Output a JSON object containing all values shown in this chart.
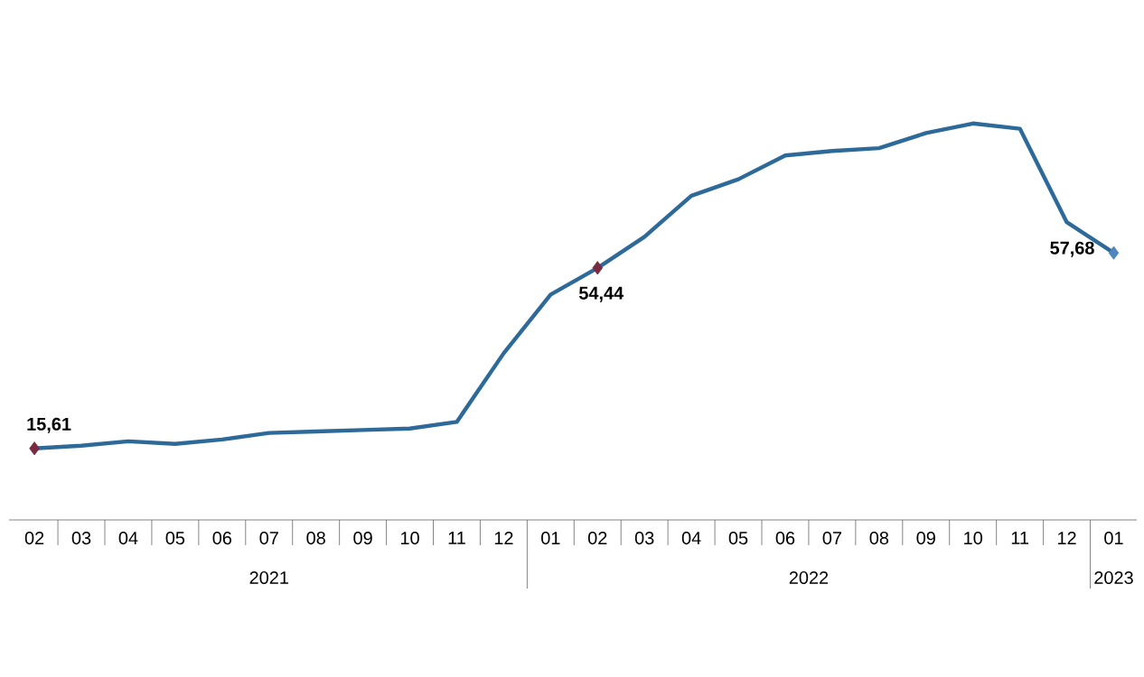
{
  "chart_data": {
    "type": "line",
    "x": [
      "2021-02",
      "2021-03",
      "2021-04",
      "2021-05",
      "2021-06",
      "2021-07",
      "2021-08",
      "2021-09",
      "2021-10",
      "2021-11",
      "2021-12",
      "2022-01",
      "2022-02",
      "2022-03",
      "2022-04",
      "2022-05",
      "2022-06",
      "2022-07",
      "2022-08",
      "2022-09",
      "2022-10",
      "2022-11",
      "2022-12",
      "2023-01"
    ],
    "xticks": [
      {
        "value": "2021-02",
        "label": "02"
      },
      {
        "value": "2021-03",
        "label": "03"
      },
      {
        "value": "2021-04",
        "label": "04"
      },
      {
        "value": "2021-05",
        "label": "05"
      },
      {
        "value": "2021-06",
        "label": "06"
      },
      {
        "value": "2021-07",
        "label": "07"
      },
      {
        "value": "2021-08",
        "label": "08"
      },
      {
        "value": "2021-09",
        "label": "09"
      },
      {
        "value": "2021-10",
        "label": "10"
      },
      {
        "value": "2021-11",
        "label": "11"
      },
      {
        "value": "2021-12",
        "label": "12"
      },
      {
        "value": "2022-01",
        "label": "01"
      },
      {
        "value": "2022-02",
        "label": "02"
      },
      {
        "value": "2022-03",
        "label": "03"
      },
      {
        "value": "2022-04",
        "label": "04"
      },
      {
        "value": "2022-05",
        "label": "05"
      },
      {
        "value": "2022-06",
        "label": "06"
      },
      {
        "value": "2022-07",
        "label": "07"
      },
      {
        "value": "2022-08",
        "label": "08"
      },
      {
        "value": "2022-09",
        "label": "09"
      },
      {
        "value": "2022-10",
        "label": "10"
      },
      {
        "value": "2022-11",
        "label": "11"
      },
      {
        "value": "2022-12",
        "label": "12"
      },
      {
        "value": "2023-01",
        "label": "01"
      }
    ],
    "annotations": [
      "2021",
      "2022",
      "2023"
    ],
    "xlim": [
      "2021-01-15",
      "2023-01-16"
    ],
    "tick_labels": "x",
    "series": [
      {
        "color": "#2e6a99",
        "values": [
          15.61,
          16.19,
          17.14,
          16.59,
          17.53,
          18.95,
          19.25,
          19.58,
          19.89,
          21.31,
          36.08,
          48.69,
          54.44,
          61.14,
          69.97,
          73.5,
          78.62,
          79.6,
          80.21,
          83.45,
          85.51,
          84.39,
          64.27,
          57.68
        ],
        "value_labels": [
          "15,61",
          null,
          null,
          null,
          null,
          null,
          null,
          null,
          null,
          null,
          null,
          null,
          "54,44",
          null,
          null,
          null,
          null,
          null,
          null,
          null,
          null,
          null,
          null,
          "57,68"
        ],
        "colors": [
          "#7a2a40",
          "#2e6a99",
          "#2e6a99",
          "#2e6a99",
          "#2e6a99",
          "#2e6a99",
          "#2e6a99",
          "#2e6a99",
          "#2e6a99",
          "#2e6a99",
          "#2e6a99",
          "#2e6a99",
          "#7a2a40",
          "#2e6a99",
          "#2e6a99",
          "#2e6a99",
          "#2e6a99",
          "#2e6a99",
          "#2e6a99",
          "#2e6a99",
          "#2e6a99",
          "#2e6a99",
          "#2e6a99",
          "#4f86bd"
        ]
      }
    ]
  }
}
